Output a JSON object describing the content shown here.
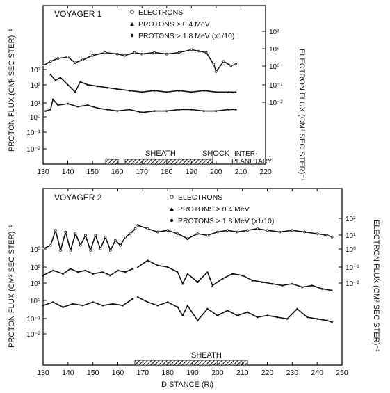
{
  "chart_data": [
    {
      "type": "line",
      "title": "VOYAGER 1",
      "xlabel": "",
      "ylabel": "PROTON FLUX (CM² SEC STER)⁻¹",
      "ylabel_right": "ELECTRON FLUX (CM² SEC STER)⁻¹",
      "xlim": [
        130,
        220
      ],
      "x_ticks": [
        "130",
        "140",
        "150",
        "160",
        "170",
        "180",
        "190",
        "200",
        "210",
        "220"
      ],
      "left_ticks": [
        "10³",
        "10²",
        "10¹",
        "10⁰",
        "10⁻¹",
        "10⁻²"
      ],
      "right_ticks": [
        "10²",
        "10¹",
        "10⁰",
        "10⁻¹",
        "10⁻²"
      ],
      "legend": [
        "ELECTRONS",
        "PROTONS > 0.4 MeV",
        "PROTONS > 1.8 MeV (x1/10)"
      ],
      "annotations": [
        "SHEATH",
        "SHOCK",
        "INTER-",
        "PLANETARY"
      ],
      "series": [
        {
          "name": "ELECTRONS",
          "x": [
            130,
            133,
            136,
            140,
            143,
            146,
            150,
            155,
            160,
            163,
            167,
            170,
            175,
            180,
            185,
            190,
            193,
            196,
            199,
            200,
            203,
            206,
            208
          ],
          "y": [
            3.5,
            3.8,
            4.0,
            4.1,
            3.7,
            3.9,
            4.2,
            4.4,
            4.3,
            4.2,
            4.4,
            4.3,
            4.4,
            4.3,
            4.4,
            4.6,
            4.5,
            4.4,
            3.6,
            3.1,
            3.8,
            3.5,
            3.6
          ]
        },
        {
          "name": "PROTONS > 0.4 MeV",
          "x": [
            133,
            135,
            137,
            140,
            143,
            145,
            148,
            152,
            156,
            160,
            165,
            170,
            175,
            180,
            185,
            190,
            195,
            200,
            205,
            208
          ],
          "y": [
            2.9,
            2.5,
            2.7,
            2.2,
            1.7,
            2.4,
            2.2,
            2.1,
            2.0,
            1.9,
            1.8,
            1.7,
            1.8,
            1.7,
            1.8,
            1.7,
            1.8,
            1.7,
            1.7,
            1.7
          ]
        },
        {
          "name": "PROTONS > 1.8 MeV (x1/10)",
          "x": [
            131,
            133,
            134,
            136,
            140,
            144,
            148,
            152,
            156,
            160,
            165,
            170,
            175,
            180,
            185,
            190,
            195,
            200,
            205,
            208
          ],
          "y": [
            0.4,
            0.5,
            1.2,
            0.8,
            0.9,
            0.7,
            0.8,
            0.6,
            0.5,
            0.4,
            0.5,
            0.3,
            0.4,
            0.4,
            0.5,
            0.5,
            0.4,
            0.4,
            0.5,
            0.5
          ]
        }
      ]
    },
    {
      "type": "line",
      "title": "VOYAGER 2",
      "xlabel": "DISTANCE (Rⱼ)",
      "ylabel": "PROTON FLUX (CM² SEC STER)⁻¹",
      "ylabel_right": "ELECTRON FLUX (CM² SEC STER)⁻¹",
      "xlim": [
        130,
        250
      ],
      "x_ticks": [
        "130",
        "140",
        "150",
        "160",
        "170",
        "180",
        "190",
        "200",
        "210",
        "220",
        "230",
        "240",
        "250"
      ],
      "left_ticks": [
        "10³",
        "10²",
        "10¹",
        "10⁰",
        "10⁻¹",
        "10⁻²"
      ],
      "right_ticks": [
        "10²",
        "10¹",
        "10⁰",
        "10⁻¹",
        "10⁻²"
      ],
      "legend": [
        "ELECTRONS",
        "PROTONS > 0.4 MeV",
        "PROTONS > 1.8 MeV (x1/10)"
      ],
      "annotations": [
        "SHEATH"
      ],
      "series": [
        {
          "name": "ELECTRONS",
          "x": [
            130,
            133,
            135,
            137,
            139,
            141,
            143,
            145,
            147,
            149,
            151,
            153,
            155,
            157,
            159,
            161,
            163,
            165,
            167,
            168,
            172,
            176,
            180,
            184,
            188,
            192,
            196,
            200,
            204,
            208,
            212,
            216,
            220,
            225,
            230,
            235,
            240,
            244,
            246
          ],
          "y": [
            3.1,
            3.3,
            4.2,
            3.0,
            4.1,
            3.0,
            4.0,
            3.3,
            3.9,
            3.0,
            3.9,
            3.1,
            3.8,
            3.0,
            3.6,
            3.3,
            3.8,
            4.0,
            4.3,
            4.5,
            4.3,
            4.1,
            4.2,
            4.0,
            3.7,
            4.0,
            3.9,
            4.1,
            4.2,
            4.1,
            4.2,
            4.3,
            4.2,
            4.1,
            4.2,
            4.1,
            4.0,
            3.9,
            3.8
          ]
        },
        {
          "name": "PROTONS > 0.4 MeV",
          "x": [
            130,
            134,
            138,
            141,
            144,
            147,
            150,
            154,
            157,
            160,
            163,
            166,
            168,
            172,
            176,
            180,
            184,
            186,
            188,
            192,
            196,
            198,
            202,
            206,
            210,
            214,
            218,
            222,
            226,
            230,
            234,
            238,
            242,
            246
          ],
          "y": [
            1.5,
            1.8,
            1.6,
            1.9,
            1.7,
            1.8,
            1.6,
            1.7,
            1.5,
            1.8,
            1.7,
            1.9,
            2.0,
            2.4,
            2.1,
            2.0,
            1.7,
            1.0,
            1.6,
            1.1,
            1.7,
            0.9,
            1.3,
            1.6,
            1.5,
            1.2,
            1.1,
            1.0,
            0.9,
            1.0,
            0.8,
            0.9,
            0.7,
            0.6
          ]
        },
        {
          "name": "PROTONS > 1.8 MeV (x1/10)",
          "x": [
            130,
            134,
            138,
            142,
            146,
            150,
            154,
            158,
            162,
            166,
            168,
            172,
            176,
            180,
            184,
            186,
            188,
            192,
            196,
            200,
            204,
            208,
            212,
            216,
            220,
            224,
            228,
            232,
            236,
            240,
            244,
            246
          ],
          "y": [
            -0.3,
            -0.1,
            -0.4,
            -0.2,
            -0.3,
            -0.1,
            -0.3,
            -0.2,
            -0.3,
            0.1,
            0.2,
            -0.1,
            -0.3,
            -0.1,
            -0.4,
            -0.9,
            -0.3,
            -1.2,
            -0.5,
            -0.9,
            -0.6,
            -0.9,
            -0.7,
            -1.0,
            -0.9,
            -1.0,
            -1.1,
            -0.5,
            -1.0,
            -1.1,
            -1.2,
            -1.3
          ]
        }
      ]
    }
  ]
}
